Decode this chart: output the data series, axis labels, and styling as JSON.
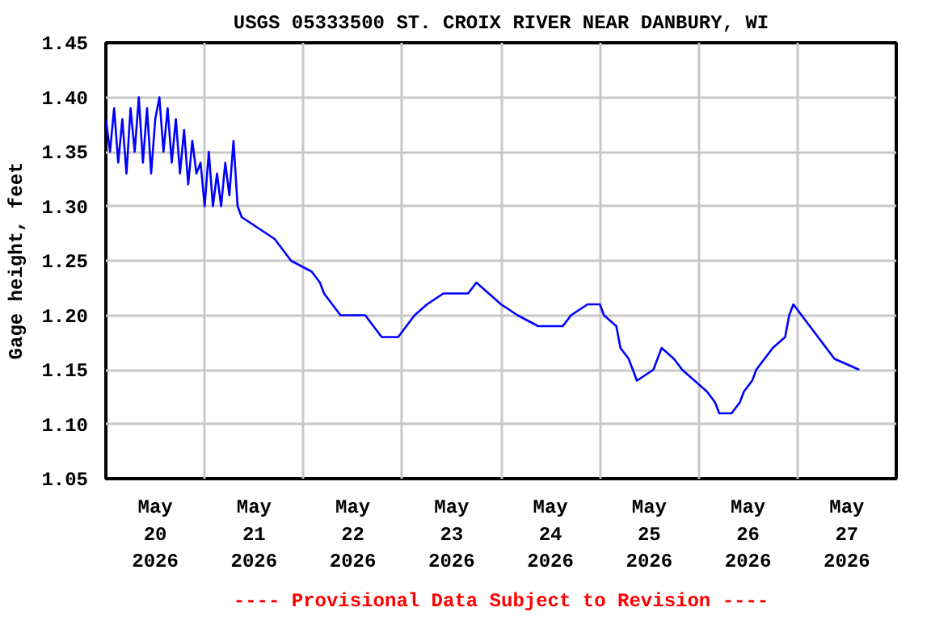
{
  "chart_data": {
    "type": "line",
    "title": "USGS 05333500 ST. CROIX RIVER NEAR DANBURY, WI",
    "ylabel": "Gage height, feet",
    "annotations": [
      "---- Provisional Data Subject to Revision ----"
    ],
    "x": [
      "2026-05-20T00:00",
      "2026-05-20T01:00",
      "2026-05-20T02:00",
      "2026-05-20T03:00",
      "2026-05-20T04:00",
      "2026-05-20T05:00",
      "2026-05-20T06:00",
      "2026-05-20T07:00",
      "2026-05-20T08:00",
      "2026-05-20T09:00",
      "2026-05-20T10:00",
      "2026-05-20T11:00",
      "2026-05-20T12:00",
      "2026-05-20T13:00",
      "2026-05-20T14:00",
      "2026-05-20T15:00",
      "2026-05-20T16:00",
      "2026-05-20T17:00",
      "2026-05-20T18:00",
      "2026-05-20T19:00",
      "2026-05-20T20:00",
      "2026-05-20T21:00",
      "2026-05-20T22:00",
      "2026-05-20T23:00",
      "2026-05-21T00:00",
      "2026-05-21T01:00",
      "2026-05-21T02:00",
      "2026-05-21T03:00",
      "2026-05-21T04:00",
      "2026-05-21T05:00",
      "2026-05-21T06:00",
      "2026-05-21T07:00",
      "2026-05-21T08:00",
      "2026-05-21T09:00",
      "2026-05-21T13:00",
      "2026-05-21T17:00",
      "2026-05-21T19:00",
      "2026-05-21T21:00",
      "2026-05-22T02:00",
      "2026-05-22T04:00",
      "2026-05-22T05:00",
      "2026-05-22T07:00",
      "2026-05-22T09:00",
      "2026-05-22T15:00",
      "2026-05-22T17:00",
      "2026-05-22T19:00",
      "2026-05-22T23:00",
      "2026-05-23T01:00",
      "2026-05-23T03:00",
      "2026-05-23T06:00",
      "2026-05-23T10:00",
      "2026-05-23T16:00",
      "2026-05-23T18:00",
      "2026-05-23T21:00",
      "2026-05-24T00:00",
      "2026-05-24T04:00",
      "2026-05-24T09:00",
      "2026-05-24T15:00",
      "2026-05-24T17:00",
      "2026-05-24T21:00",
      "2026-05-25T00:00",
      "2026-05-25T01:00",
      "2026-05-25T04:00",
      "2026-05-25T05:00",
      "2026-05-25T07:00",
      "2026-05-25T09:00",
      "2026-05-25T13:00",
      "2026-05-25T15:00",
      "2026-05-25T18:00",
      "2026-05-25T20:00",
      "2026-05-25T23:00",
      "2026-05-26T02:00",
      "2026-05-26T04:00",
      "2026-05-26T05:00",
      "2026-05-26T08:00",
      "2026-05-26T10:00",
      "2026-05-26T11:00",
      "2026-05-26T13:00",
      "2026-05-26T14:00",
      "2026-05-26T16:00",
      "2026-05-26T18:00",
      "2026-05-26T21:00",
      "2026-05-26T22:00",
      "2026-05-26T23:00",
      "2026-05-27T01:00",
      "2026-05-27T03:00",
      "2026-05-27T05:00",
      "2026-05-27T07:00",
      "2026-05-27T09:00",
      "2026-05-27T15:00"
    ],
    "series": [
      {
        "color": "#0000ff",
        "values": [
          1.38,
          1.35,
          1.39,
          1.34,
          1.38,
          1.33,
          1.39,
          1.35,
          1.4,
          1.34,
          1.39,
          1.33,
          1.38,
          1.4,
          1.35,
          1.39,
          1.34,
          1.38,
          1.33,
          1.37,
          1.32,
          1.36,
          1.33,
          1.34,
          1.3,
          1.35,
          1.3,
          1.33,
          1.3,
          1.34,
          1.31,
          1.36,
          1.3,
          1.29,
          1.28,
          1.27,
          1.26,
          1.25,
          1.24,
          1.23,
          1.22,
          1.21,
          1.2,
          1.2,
          1.19,
          1.18,
          1.18,
          1.19,
          1.2,
          1.21,
          1.22,
          1.22,
          1.23,
          1.22,
          1.21,
          1.2,
          1.19,
          1.19,
          1.2,
          1.21,
          1.21,
          1.2,
          1.19,
          1.17,
          1.16,
          1.14,
          1.15,
          1.17,
          1.16,
          1.15,
          1.14,
          1.13,
          1.12,
          1.11,
          1.11,
          1.12,
          1.13,
          1.14,
          1.15,
          1.16,
          1.17,
          1.18,
          1.2,
          1.21,
          1.2,
          1.19,
          1.18,
          1.17,
          1.16,
          1.15
        ]
      }
    ],
    "xlim": [
      "2026-05-20T00:00",
      "2026-05-28T00:00"
    ],
    "xticks": [
      {
        "value": "2026-05-20T00:00",
        "label": null
      },
      {
        "value": "2026-05-20T12:00",
        "label": "May\n20\n2026"
      },
      {
        "value": "2026-05-21T00:00",
        "label": null
      },
      {
        "value": "2026-05-21T12:00",
        "label": "May\n21\n2026"
      },
      {
        "value": "2026-05-22T00:00",
        "label": null
      },
      {
        "value": "2026-05-22T12:00",
        "label": "May\n22\n2026"
      },
      {
        "value": "2026-05-23T00:00",
        "label": null
      },
      {
        "value": "2026-05-23T12:00",
        "label": "May\n23\n2026"
      },
      {
        "value": "2026-05-24T00:00",
        "label": null
      },
      {
        "value": "2026-05-24T12:00",
        "label": "May\n24\n2026"
      },
      {
        "value": "2026-05-25T00:00",
        "label": null
      },
      {
        "value": "2026-05-25T12:00",
        "label": "May\n25\n2026"
      },
      {
        "value": "2026-05-26T00:00",
        "label": null
      },
      {
        "value": "2026-05-26T12:00",
        "label": "May\n26\n2026"
      },
      {
        "value": "2026-05-27T00:00",
        "label": null
      },
      {
        "value": "2026-05-27T12:00",
        "label": "May\n27\n2026"
      },
      {
        "value": "2026-05-28T00:00",
        "label": null
      }
    ],
    "ylim": [
      1.05,
      1.45
    ],
    "yticks": [
      1.05,
      {
        "value": 1.1,
        "label": "1.10"
      },
      1.15,
      {
        "value": 1.2,
        "label": "1.20"
      },
      1.25,
      {
        "value": 1.3,
        "label": "1.30"
      },
      1.35,
      {
        "value": 1.4,
        "label": "1.40"
      },
      1.45
    ],
    "grid": true,
    "marker": "none",
    "line_style": "solid"
  }
}
